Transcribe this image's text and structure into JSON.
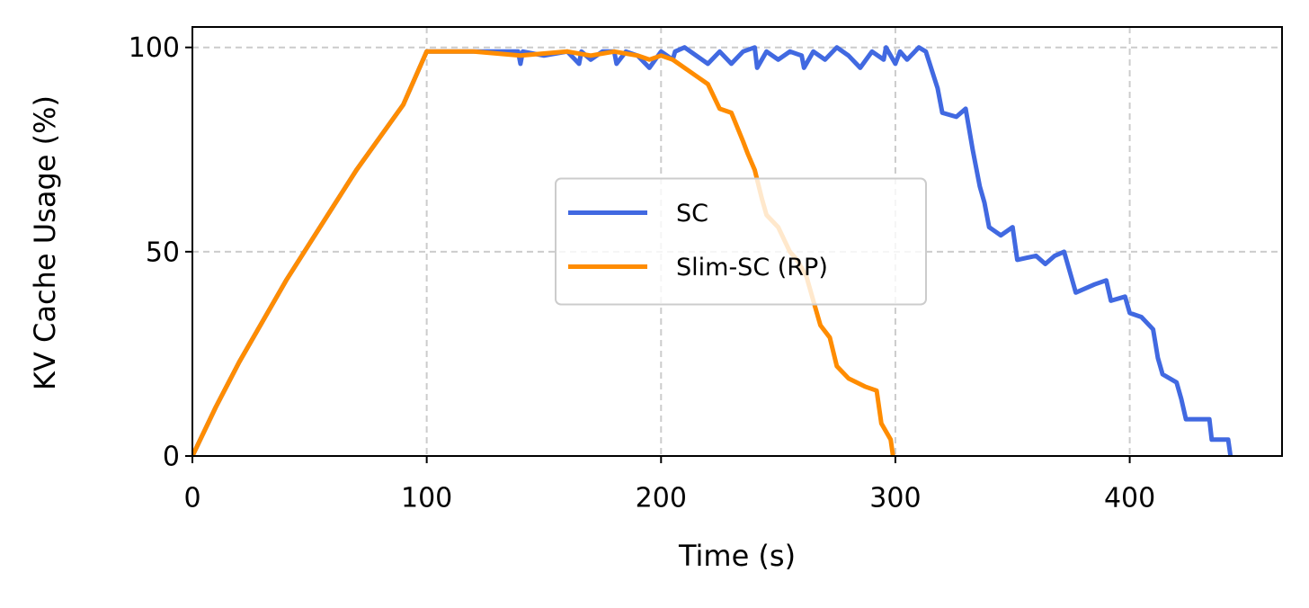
{
  "chart_data": {
    "type": "line",
    "xlabel": "Time (s)",
    "ylabel": "KV Cache Usage (%)",
    "xlim": [
      0,
      465
    ],
    "ylim": [
      0,
      105
    ],
    "xticks": [
      0,
      100,
      200,
      300,
      400
    ],
    "yticks": [
      0,
      50,
      100
    ],
    "grid": true,
    "legend": "center",
    "series": [
      {
        "name": "SC",
        "color": "#4169e1",
        "x": [
          0,
          10,
          20,
          30,
          40,
          50,
          60,
          70,
          80,
          90,
          100,
          120,
          139,
          140,
          141,
          150,
          160,
          165,
          166,
          170,
          175,
          180,
          181,
          185,
          190,
          195,
          200,
          205,
          206,
          210,
          215,
          220,
          225,
          230,
          235,
          240,
          241,
          245,
          250,
          255,
          260,
          261,
          265,
          270,
          275,
          280,
          285,
          290,
          295,
          296,
          300,
          302,
          305,
          310,
          313,
          318,
          320,
          326,
          330,
          333,
          336,
          338,
          340,
          345,
          350,
          352,
          360,
          364,
          368,
          372,
          375,
          377,
          385,
          390,
          392,
          398,
          400,
          405,
          410,
          412,
          414,
          420,
          422,
          424,
          434,
          435,
          442,
          443
        ],
        "values": [
          0,
          12,
          23,
          33,
          43,
          52,
          61,
          70,
          78,
          86,
          99,
          99,
          99,
          96,
          99,
          98,
          99,
          96,
          99,
          97,
          99,
          99,
          96,
          99,
          98,
          95,
          99,
          97,
          99,
          100,
          98,
          96,
          99,
          96,
          99,
          100,
          95,
          99,
          97,
          99,
          98,
          95,
          99,
          97,
          100,
          98,
          95,
          99,
          97,
          100,
          96,
          99,
          97,
          100,
          99,
          90,
          84,
          83,
          85,
          75,
          66,
          62,
          56,
          54,
          56,
          48,
          49,
          47,
          49,
          50,
          44,
          40,
          42,
          43,
          38,
          39,
          35,
          34,
          31,
          24,
          20,
          18,
          14,
          9,
          9,
          4,
          4,
          0
        ]
      },
      {
        "name": "Slim-SC (RP)",
        "color": "#ff8c00",
        "x": [
          0,
          10,
          20,
          30,
          40,
          50,
          60,
          70,
          80,
          90,
          100,
          120,
          140,
          160,
          170,
          180,
          190,
          195,
          200,
          205,
          210,
          215,
          220,
          225,
          230,
          235,
          237,
          240,
          243,
          245,
          250,
          255,
          258,
          262,
          265,
          268,
          272,
          275,
          280,
          287,
          292,
          294,
          298,
          299
        ],
        "values": [
          0,
          12,
          23,
          33,
          43,
          52,
          61,
          70,
          78,
          86,
          99,
          99,
          98,
          99,
          98,
          99,
          98,
          97,
          98,
          97,
          95,
          93,
          91,
          85,
          84,
          77,
          74,
          70,
          63,
          59,
          56,
          50,
          48,
          44,
          38,
          32,
          29,
          22,
          19,
          17,
          16,
          8,
          4,
          0
        ]
      }
    ]
  }
}
